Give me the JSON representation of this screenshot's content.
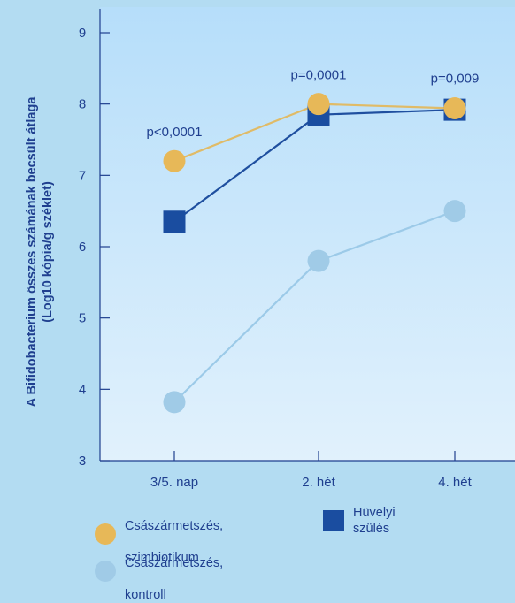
{
  "chart_data": {
    "type": "line",
    "categories": [
      "3/5. nap",
      "2. hét",
      "4. hét"
    ],
    "ylabel_line1": "A Bifidobacterium összes számának becsült átlaga",
    "ylabel_line2": "(Log10 kópia/g széklet)",
    "ylim": [
      3,
      9
    ],
    "yticks": [
      "3",
      "4",
      "5",
      "6",
      "7",
      "8",
      "9"
    ],
    "grid": false,
    "legend_placement": "bottom",
    "series": [
      {
        "name": "Császármetszés, szimbiotikum",
        "values": [
          7.2,
          8.0,
          7.94
        ],
        "color": "#e7b858",
        "line_color": "#e0bb67",
        "marker": "circle"
      },
      {
        "name": "Hüvelyi szülés",
        "values": [
          6.35,
          7.85,
          7.92
        ],
        "color": "#1a4da0",
        "line_color": "#1f4f9f",
        "marker": "square"
      },
      {
        "name": "Császármetszés, kontroll",
        "values": [
          3.82,
          5.8,
          6.5
        ],
        "color": "#a0cbe7",
        "line_color": "#9ccae8",
        "marker": "circle"
      }
    ],
    "annotations": [
      {
        "text": "p<0,0001",
        "category": 0,
        "y": 7.55
      },
      {
        "text": "p=0,0001",
        "category": 1,
        "y": 8.35
      },
      {
        "text": "p=0,009",
        "category": 2,
        "y": 8.3
      }
    ]
  },
  "legend": {
    "items": [
      {
        "label_line1": "Császármetszés,",
        "label_line2": "szimbiotikum",
        "color": "#e7b858",
        "shape": "circle"
      },
      {
        "label_line1": "Hüvelyi szülés",
        "label_line2": "",
        "color": "#1a4da0",
        "shape": "square"
      },
      {
        "label_line1": "Császármetszés,",
        "label_line2": "kontroll",
        "color": "#a0cbe7",
        "shape": "circle"
      }
    ]
  },
  "colors": {
    "axis": "#1f3f8f",
    "background": "#b3dcf2",
    "plot_top": "#b6defa",
    "plot_bottom": "#e1f1fc"
  }
}
